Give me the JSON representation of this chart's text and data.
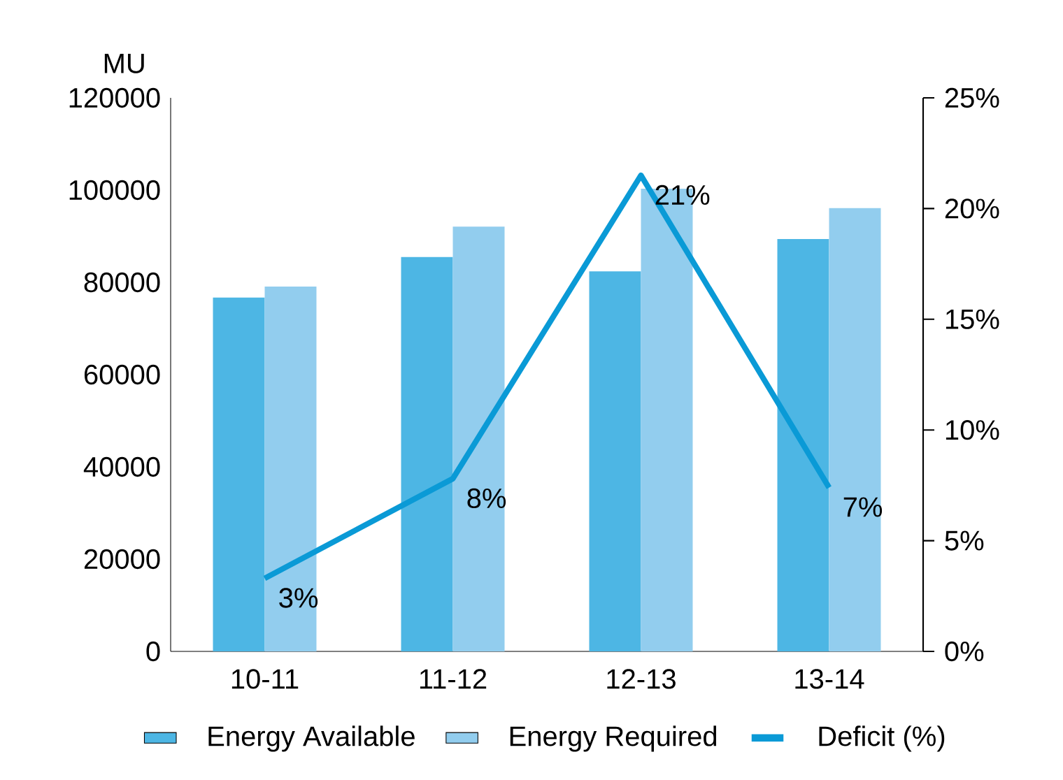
{
  "chart_data": {
    "type": "bar",
    "ylabel": "MU",
    "categories": [
      "10-11",
      "11-12",
      "12-13",
      "13-14"
    ],
    "series": [
      {
        "name": "Energy Available",
        "color": "#4db6e4",
        "values": [
          76700,
          85500,
          82400,
          89400
        ]
      },
      {
        "name": "Energy Required",
        "color": "#92cdee",
        "values": [
          79100,
          92100,
          100300,
          96100
        ]
      },
      {
        "name": "Deficit (%)",
        "type": "line",
        "axis": "y2",
        "color": "#0a9ad6",
        "values": [
          3.3,
          7.8,
          21.5,
          7.4
        ],
        "value_labels": [
          "3%",
          "8%",
          "21%",
          "7%"
        ]
      }
    ],
    "ylim": [
      0,
      120000
    ],
    "yticks": [
      0,
      20000,
      40000,
      60000,
      80000,
      100000,
      120000
    ],
    "y2lim": [
      0,
      25
    ],
    "y2ticks": [
      {
        "value": 0,
        "label": "0%"
      },
      {
        "value": 5,
        "label": "5%"
      },
      {
        "value": 10,
        "label": "10%"
      },
      {
        "value": 15,
        "label": "15%"
      },
      {
        "value": 20,
        "label": "20%"
      },
      {
        "value": 25,
        "label": "25%"
      }
    ],
    "legend": "bottom",
    "grid": false,
    "marker": "none"
  }
}
